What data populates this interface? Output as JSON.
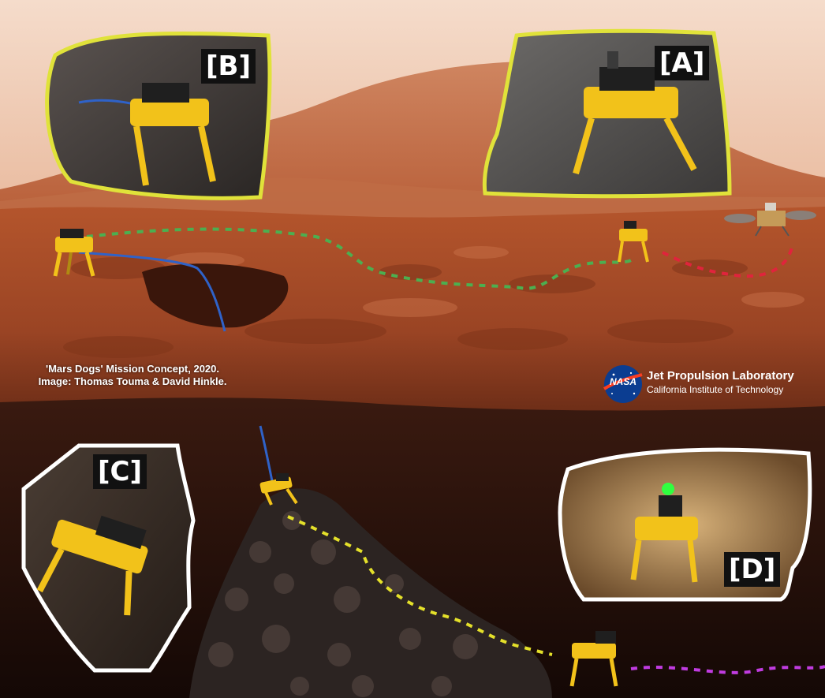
{
  "panels": {
    "a": {
      "tag": "[A]"
    },
    "b": {
      "tag": "[B]"
    },
    "c": {
      "tag": "[C]"
    },
    "d": {
      "tag": "[D]"
    }
  },
  "caption": {
    "line1": "'Mars Dogs' Mission Concept, 2020.",
    "line2": "Image: Thomas Touma & David Hinkle."
  },
  "logo": {
    "agency": "NASA",
    "title": "Jet Propulsion Laboratory",
    "subtitle": "California Institute of Technology"
  },
  "colors": {
    "sky_top": "#f3d2bf",
    "dune": "#c56a43",
    "surface": "#a44b26",
    "cave": "#1f0d08",
    "robot": "#f2c21a",
    "frame_yellow": "#e0e23a",
    "frame_white": "#ffffff",
    "path_green": "#4caf50",
    "path_red": "#e0243c",
    "path_yellow": "#e4e02a",
    "path_purple": "#c03ce0",
    "tether_blue": "#2f62c8"
  }
}
